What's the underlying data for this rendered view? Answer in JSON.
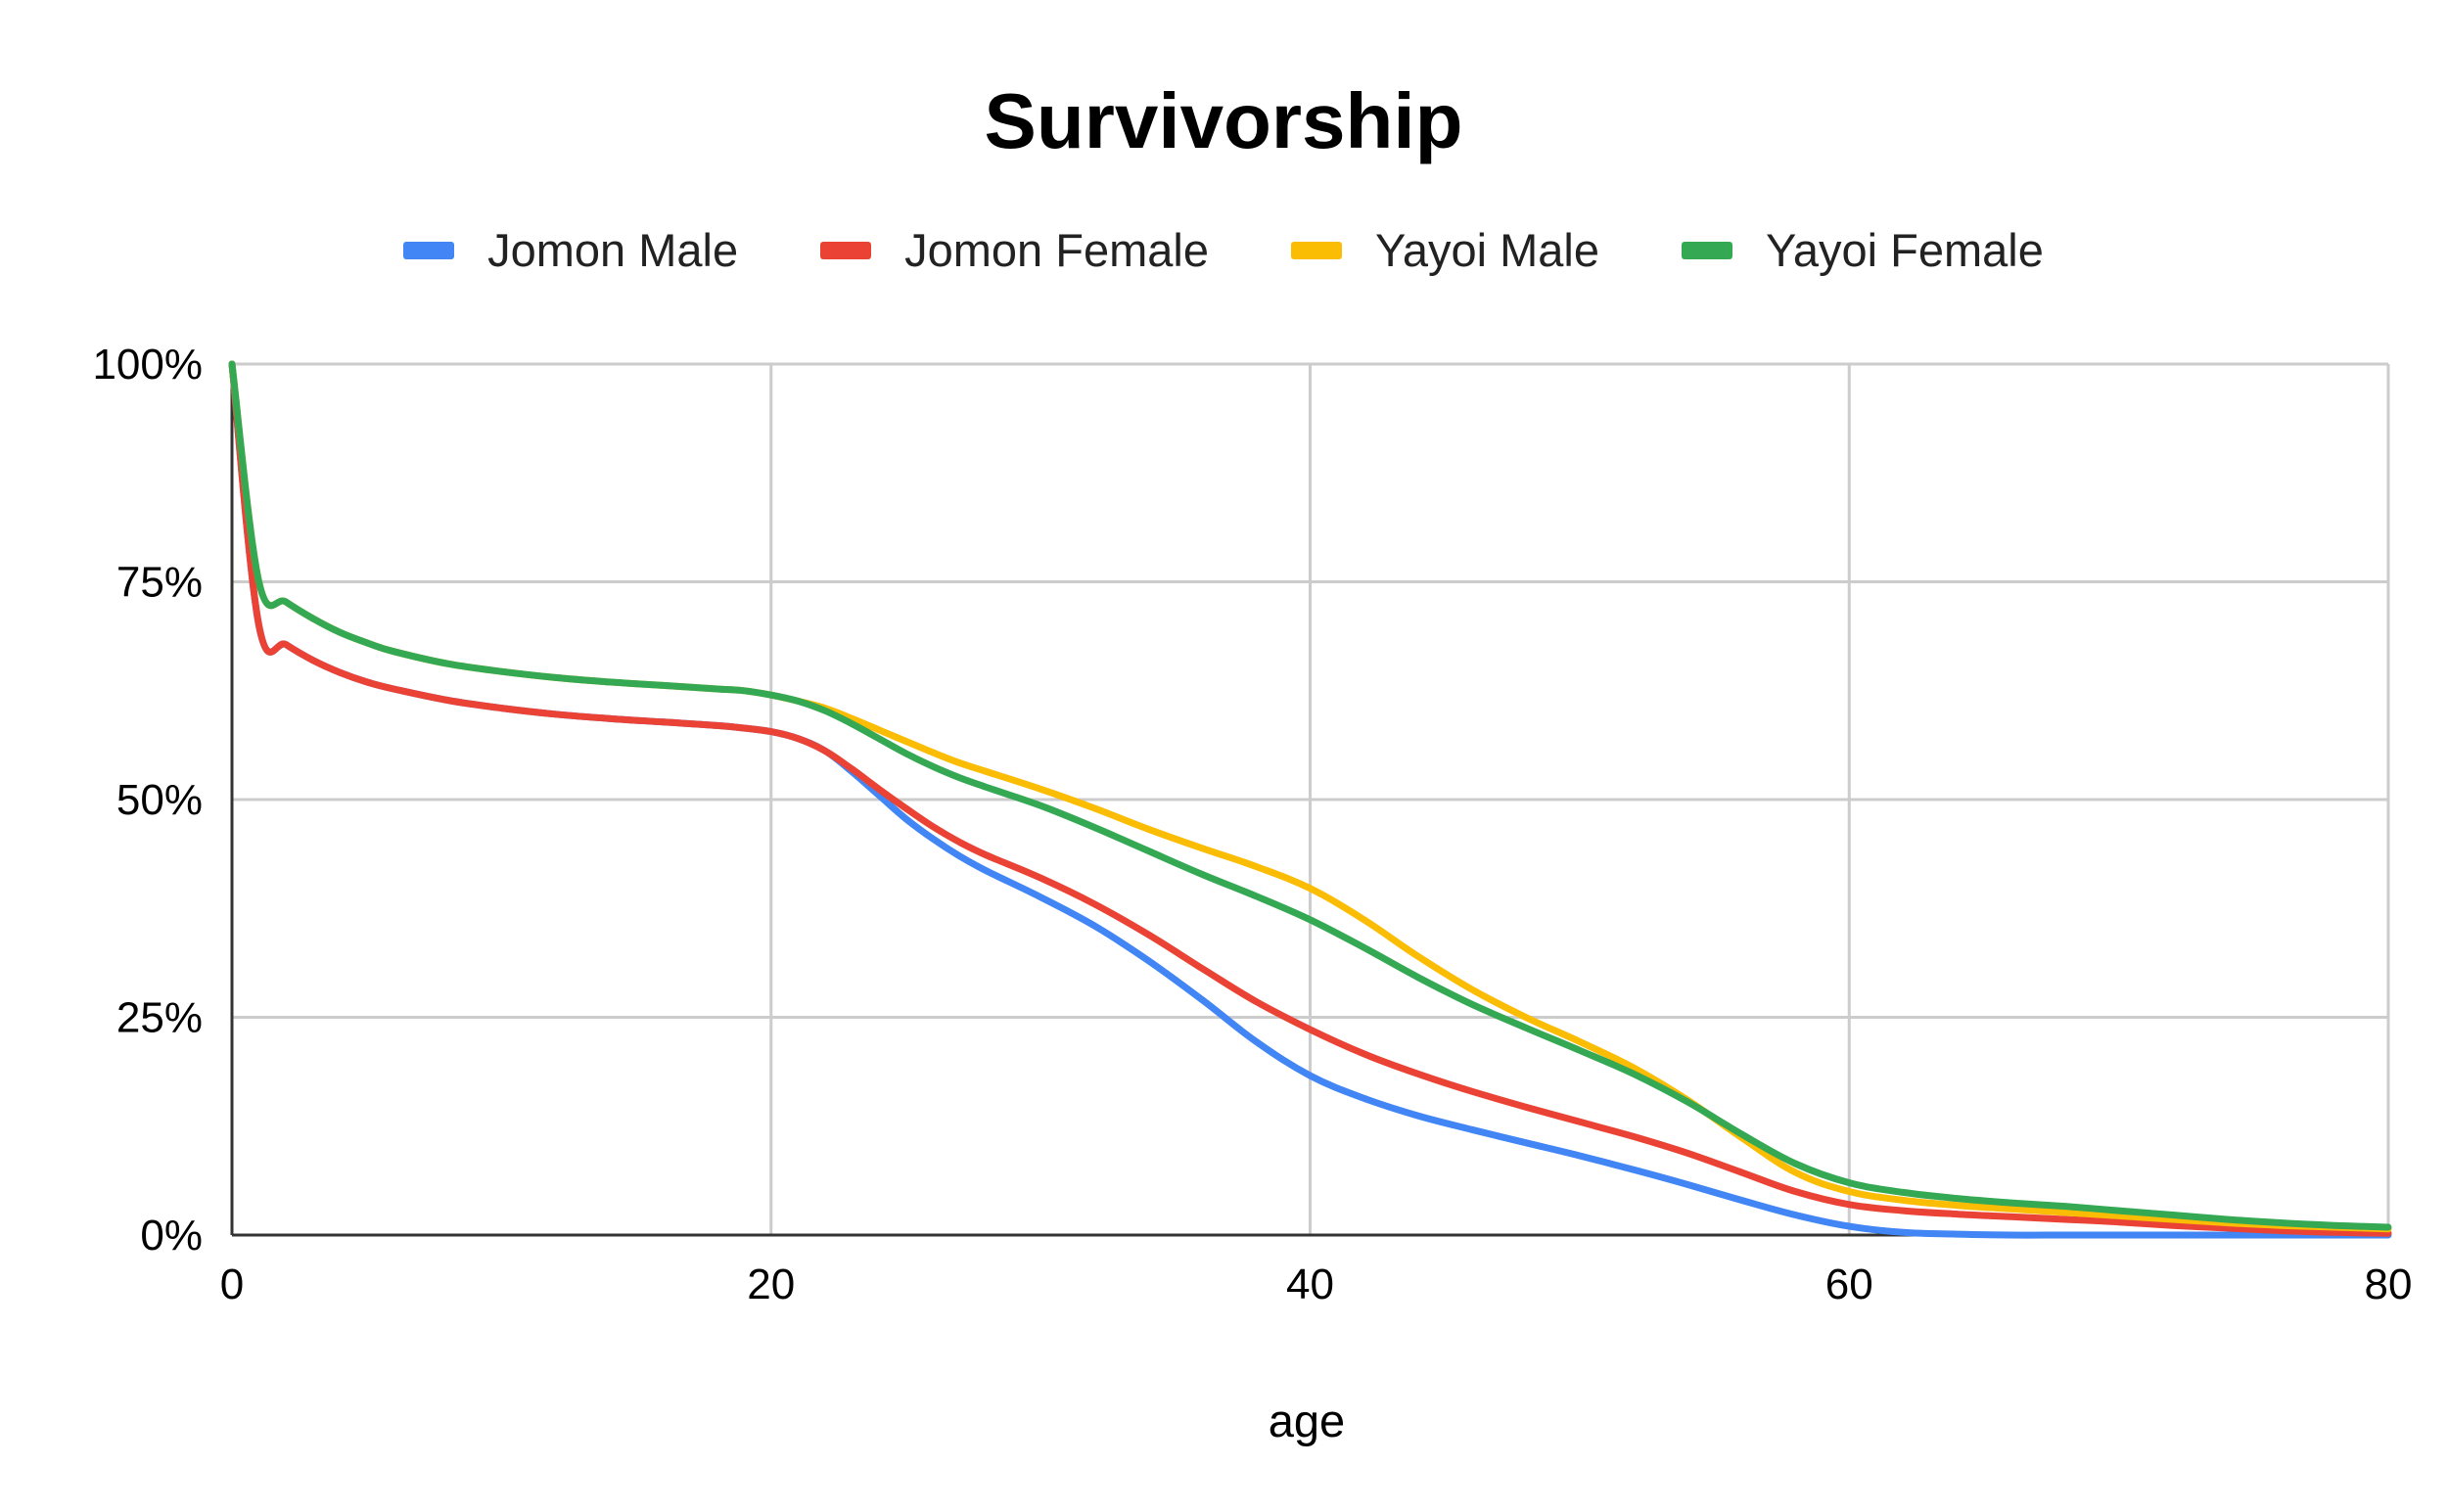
{
  "chart_data": {
    "type": "line",
    "title": "Survivorship",
    "xlabel": "age",
    "ylabel": "",
    "xlim": [
      0,
      80
    ],
    "ylim": [
      0,
      1
    ],
    "grid": true,
    "legend_position": "top",
    "x_ticks": [
      "0",
      "20",
      "40",
      "60",
      "80"
    ],
    "y_ticks": [
      "0%",
      "25%",
      "50%",
      "75%",
      "100%"
    ],
    "x": [
      0,
      1,
      2,
      3,
      4,
      5,
      6,
      8,
      10,
      12,
      14,
      16,
      18,
      19,
      20,
      21,
      22,
      23,
      24,
      25,
      26,
      27,
      28,
      30,
      32,
      34,
      36,
      38,
      40,
      42,
      44,
      46,
      48,
      50,
      52,
      54,
      56,
      58,
      60,
      62,
      64,
      66,
      68,
      70,
      72,
      74,
      76,
      78,
      80
    ],
    "series": [
      {
        "name": "Jomon Male",
        "color": "#4285f4",
        "values": [
          1.0,
          0.7,
          0.678,
          0.66,
          0.646,
          0.635,
          0.627,
          0.614,
          0.605,
          0.598,
          0.593,
          0.589,
          0.585,
          0.582,
          0.578,
          0.57,
          0.556,
          0.532,
          0.505,
          0.478,
          0.455,
          0.435,
          0.418,
          0.388,
          0.355,
          0.315,
          0.27,
          0.222,
          0.183,
          0.157,
          0.137,
          0.121,
          0.106,
          0.091,
          0.075,
          0.058,
          0.04,
          0.023,
          0.01,
          0.003,
          0.001,
          0.0,
          0.0,
          0.0,
          0.0,
          0.0,
          0.0,
          0.0,
          0.0
        ]
      },
      {
        "name": "Jomon Female",
        "color": "#ea4335",
        "values": [
          1.0,
          0.7,
          0.678,
          0.66,
          0.646,
          0.635,
          0.627,
          0.614,
          0.605,
          0.598,
          0.593,
          0.589,
          0.585,
          0.582,
          0.578,
          0.57,
          0.556,
          0.535,
          0.512,
          0.49,
          0.469,
          0.451,
          0.436,
          0.41,
          0.38,
          0.345,
          0.306,
          0.268,
          0.236,
          0.208,
          0.185,
          0.165,
          0.147,
          0.13,
          0.113,
          0.094,
          0.072,
          0.05,
          0.035,
          0.028,
          0.024,
          0.021,
          0.018,
          0.015,
          0.011,
          0.008,
          0.005,
          0.003,
          0.002
        ]
      },
      {
        "name": "Yayoi Male",
        "color": "#fbbc04",
        "values": [
          1.0,
          0.75,
          0.727,
          0.708,
          0.692,
          0.68,
          0.67,
          0.656,
          0.647,
          0.64,
          0.635,
          0.631,
          0.627,
          0.625,
          0.62,
          0.613,
          0.605,
          0.593,
          0.58,
          0.567,
          0.554,
          0.542,
          0.532,
          0.512,
          0.49,
          0.466,
          0.444,
          0.423,
          0.398,
          0.362,
          0.32,
          0.282,
          0.25,
          0.222,
          0.192,
          0.155,
          0.112,
          0.072,
          0.05,
          0.04,
          0.034,
          0.03,
          0.026,
          0.022,
          0.018,
          0.014,
          0.011,
          0.009,
          0.007
        ]
      },
      {
        "name": "Yayoi Female",
        "color": "#34a853",
        "values": [
          1.0,
          0.75,
          0.727,
          0.708,
          0.692,
          0.68,
          0.67,
          0.656,
          0.647,
          0.64,
          0.635,
          0.631,
          0.627,
          0.625,
          0.62,
          0.613,
          0.602,
          0.587,
          0.57,
          0.553,
          0.538,
          0.525,
          0.514,
          0.493,
          0.468,
          0.441,
          0.414,
          0.389,
          0.362,
          0.33,
          0.296,
          0.265,
          0.238,
          0.212,
          0.185,
          0.153,
          0.116,
          0.082,
          0.06,
          0.049,
          0.042,
          0.037,
          0.033,
          0.028,
          0.023,
          0.018,
          0.014,
          0.011,
          0.009
        ]
      }
    ]
  }
}
